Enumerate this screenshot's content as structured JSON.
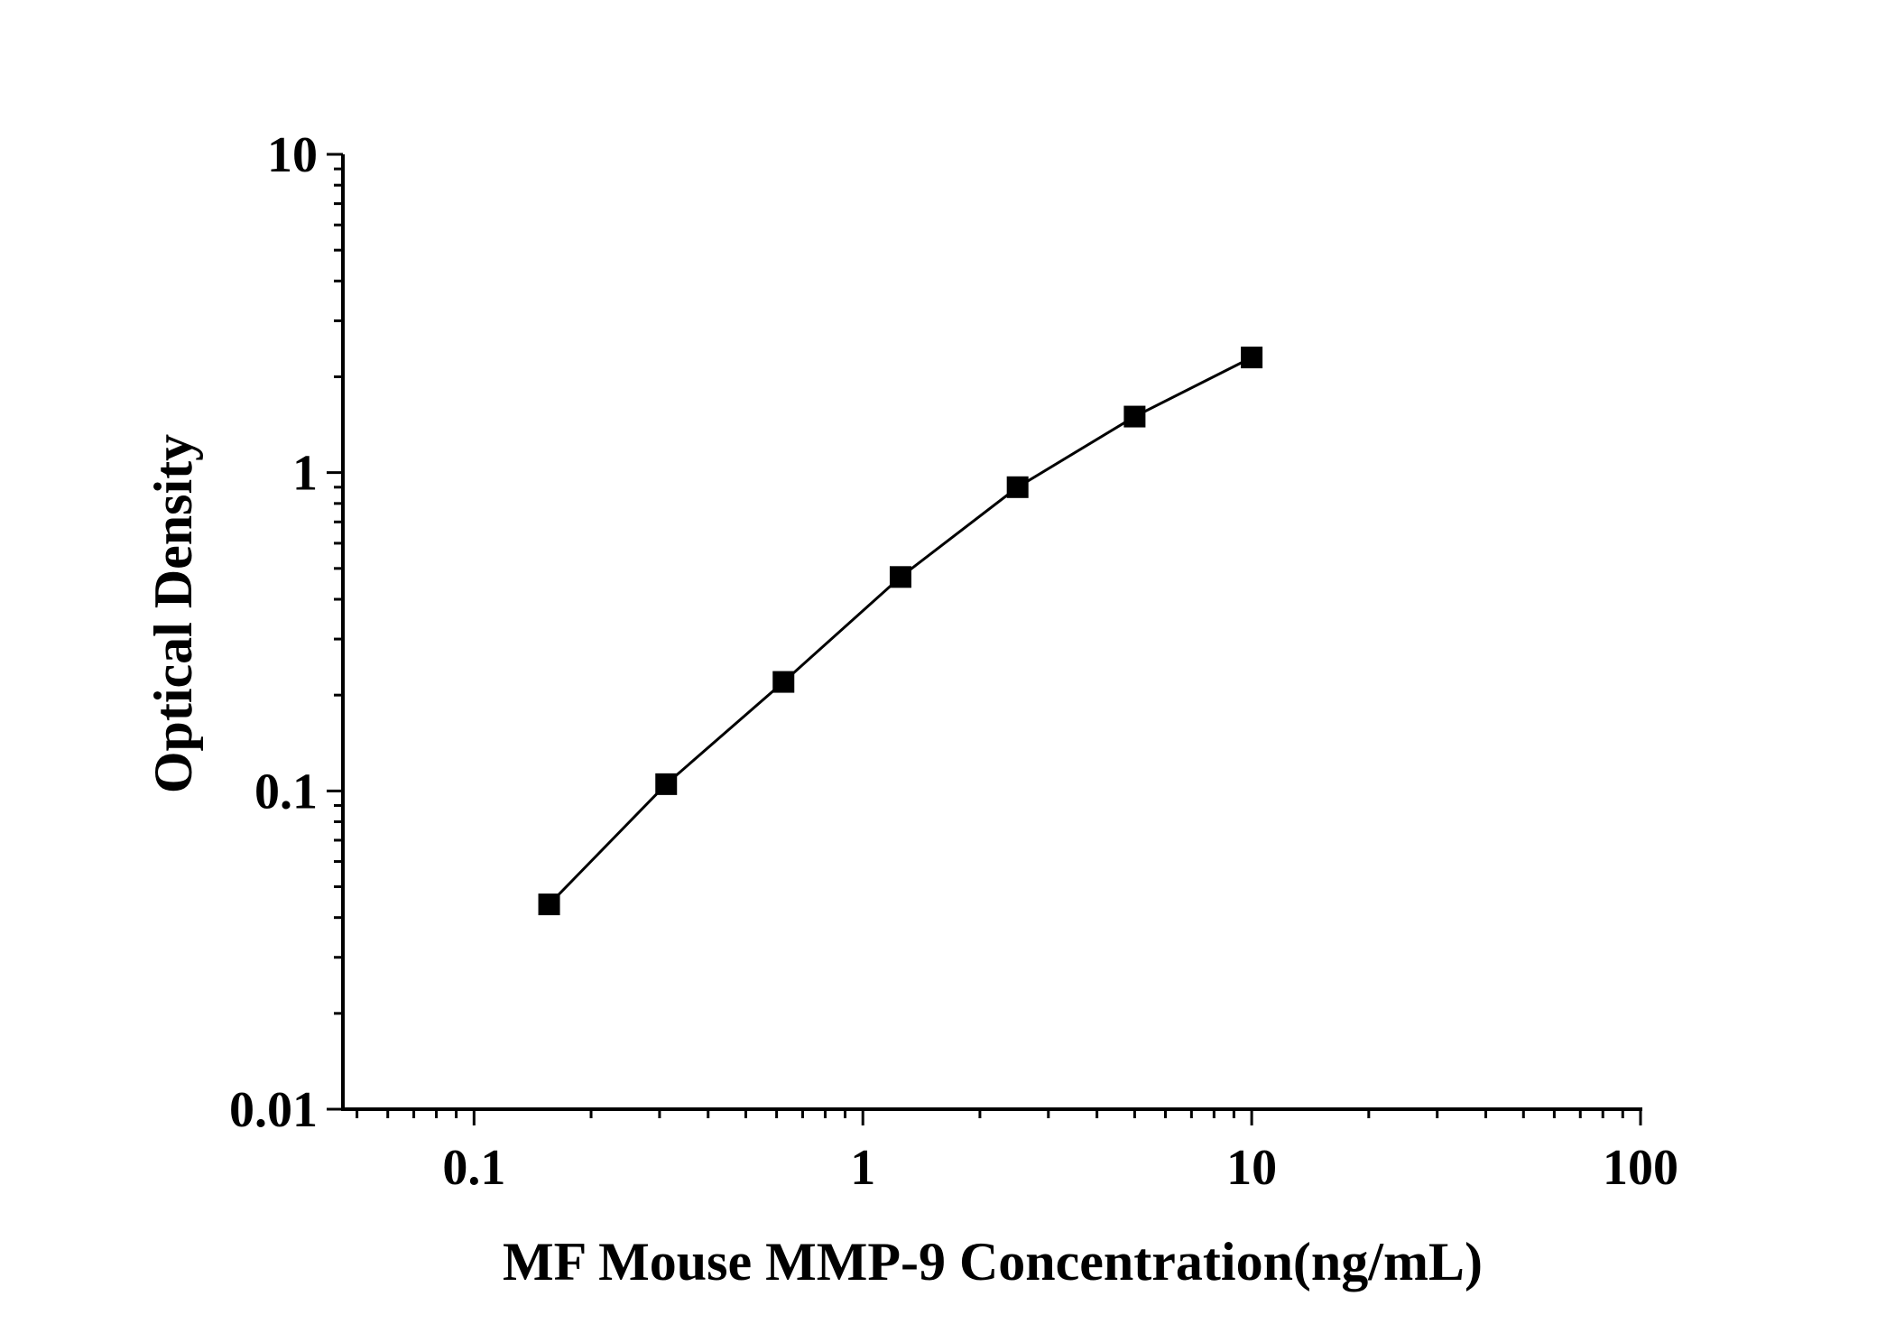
{
  "chart_data": {
    "type": "line",
    "title": "",
    "xlabel": "MF Mouse MMP-9 Concentration(ng/mL)",
    "ylabel": "Optical Density",
    "x_scale": "log",
    "y_scale": "log",
    "xlim": [
      0.046,
      100
    ],
    "ylim": [
      0.01,
      10
    ],
    "x_ticks": [
      {
        "value": 0.1,
        "label": "0.1"
      },
      {
        "value": 1,
        "label": "1"
      },
      {
        "value": 10,
        "label": "10"
      },
      {
        "value": 100,
        "label": "100"
      }
    ],
    "y_ticks": [
      {
        "value": 0.01,
        "label": "0.01"
      },
      {
        "value": 0.1,
        "label": "0.1"
      },
      {
        "value": 1,
        "label": "1"
      },
      {
        "value": 10,
        "label": "10"
      }
    ],
    "grid": false,
    "legend": "none",
    "marker": "square",
    "colors": {
      "line": "#000000",
      "marker": "#000000",
      "axis": "#000000"
    },
    "series": [
      {
        "x": [
          0.156,
          0.312,
          0.625,
          1.25,
          2.5,
          5,
          10
        ],
        "y": [
          0.044,
          0.105,
          0.22,
          0.47,
          0.9,
          1.5,
          2.3
        ]
      }
    ]
  }
}
